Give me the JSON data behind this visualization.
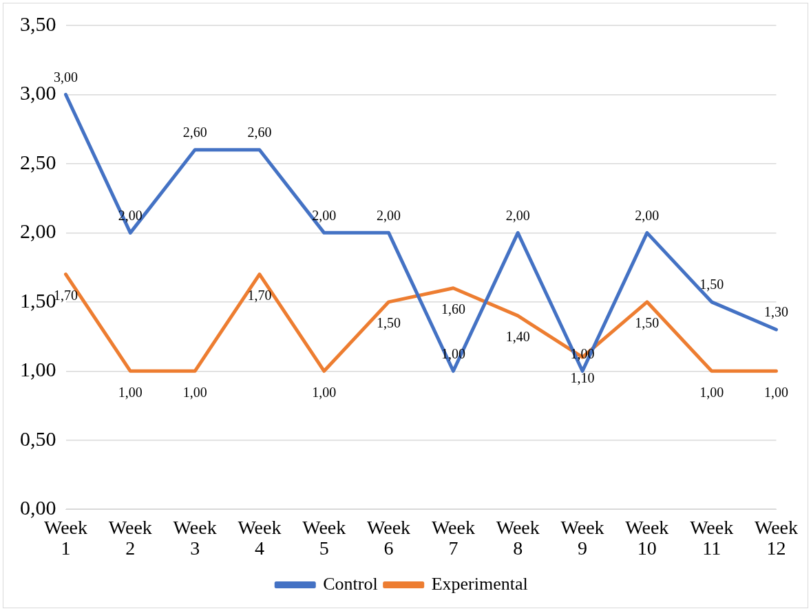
{
  "chart_data": {
    "type": "line",
    "categories": [
      "Week 1",
      "Week 2",
      "Week 3",
      "Week 4",
      "Week 5",
      "Week 6",
      "Week 7",
      "Week 8",
      "Week 9",
      "Week 10",
      "Week 11",
      "Week 12"
    ],
    "series": [
      {
        "name": "Control",
        "color": "#4472c4",
        "values": [
          3.0,
          2.0,
          2.6,
          2.6,
          2.0,
          2.0,
          1.0,
          2.0,
          1.0,
          2.0,
          1.5,
          1.3
        ],
        "value_labels": [
          "3,00",
          "2,00",
          "2,60",
          "2,60",
          "2,00",
          "2,00",
          "1,00",
          "2,00",
          "1,00",
          "2,00",
          "1,50",
          "1,30"
        ]
      },
      {
        "name": "Experimental",
        "color": "#ed7d31",
        "values": [
          1.7,
          1.0,
          1.0,
          1.7,
          1.0,
          1.5,
          1.6,
          1.4,
          1.1,
          1.5,
          1.0,
          1.0
        ],
        "value_labels": [
          "1,70",
          "1,00",
          "1,00",
          "1,70",
          "1,00",
          "1,50",
          "1,60",
          "1,40",
          "1,10",
          "1,50",
          "1,00",
          "1,00"
        ]
      }
    ],
    "ylim": [
      0,
      3.5
    ],
    "yticks": [
      {
        "value": 0,
        "label": "0,00"
      },
      {
        "value": 0.5,
        "label": "0,50"
      },
      {
        "value": 1,
        "label": "1,00"
      },
      {
        "value": 1.5,
        "label": "1,50"
      },
      {
        "value": 2,
        "label": "2,00"
      },
      {
        "value": 2.5,
        "label": "2,50"
      },
      {
        "value": 3,
        "label": "3,00"
      },
      {
        "value": 3.5,
        "label": "3,50"
      }
    ],
    "grid": "y",
    "legend": "bottom",
    "marker": "none",
    "line_style": "solid"
  }
}
